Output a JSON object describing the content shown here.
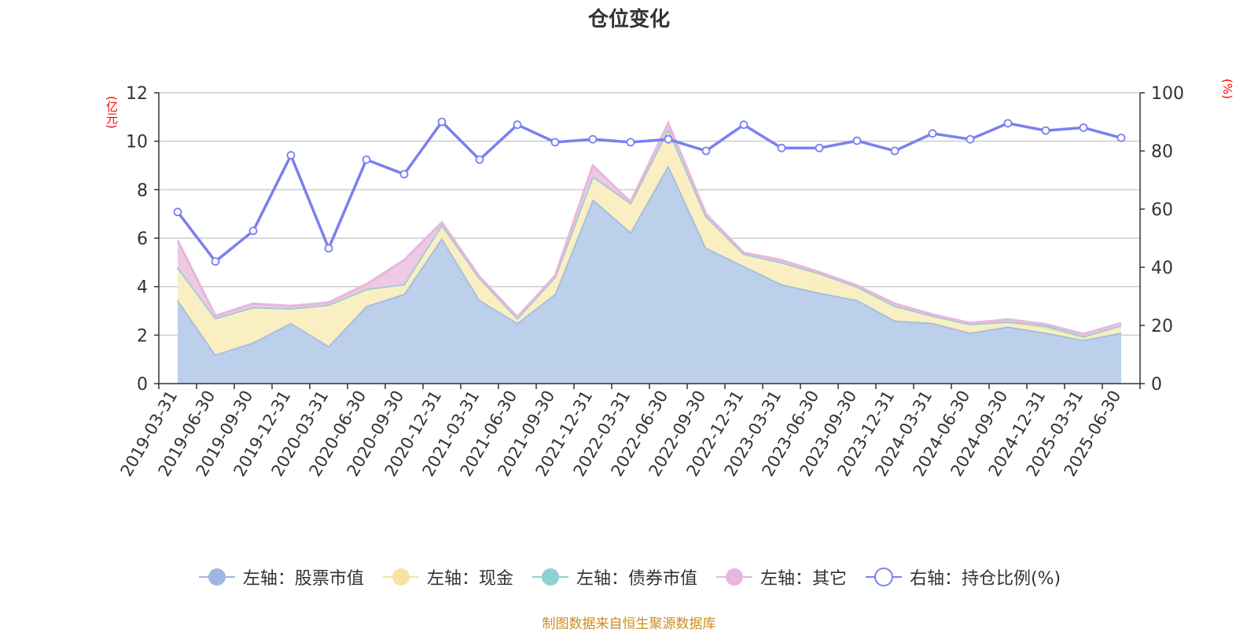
{
  "chart_data": {
    "type": "area",
    "title": "仓位变化",
    "left_unit": "(亿元)",
    "right_unit": "(%)",
    "categories": [
      "2019-03-31",
      "2019-06-30",
      "2019-09-30",
      "2019-12-31",
      "2020-03-31",
      "2020-06-30",
      "2020-09-30",
      "2020-12-31",
      "2021-03-31",
      "2021-06-30",
      "2021-09-30",
      "2021-12-31",
      "2022-03-31",
      "2022-06-30",
      "2022-09-30",
      "2022-12-31",
      "2023-03-31",
      "2023-06-30",
      "2023-09-30",
      "2023-12-31",
      "2024-03-31",
      "2024-06-30",
      "2024-09-30",
      "2024-12-31",
      "2025-03-31",
      "2025-06-30"
    ],
    "left_axis": {
      "min": 0,
      "max": 12,
      "ticks": [
        0,
        2,
        4,
        6,
        8,
        10,
        12
      ]
    },
    "right_axis": {
      "min": 0,
      "max": 100,
      "ticks": [
        0,
        20,
        40,
        60,
        80,
        100
      ]
    },
    "stacked_series": [
      {
        "name": "左轴：股票市值",
        "color": "#9db8e0",
        "fill": "#b8cdea",
        "values": [
          3.45,
          1.2,
          1.7,
          2.5,
          1.55,
          3.2,
          3.7,
          6.0,
          3.45,
          2.5,
          3.7,
          7.6,
          6.25,
          9.0,
          5.6,
          4.85,
          4.1,
          3.75,
          3.45,
          2.6,
          2.5,
          2.1,
          2.35,
          2.1,
          1.8,
          2.1
        ]
      },
      {
        "name": "左轴：现金",
        "color": "#f7e3a0",
        "fill": "#faeebf",
        "values": [
          1.35,
          1.5,
          1.45,
          0.6,
          1.7,
          0.7,
          0.4,
          0.55,
          0.9,
          0.2,
          0.7,
          0.95,
          1.2,
          1.5,
          1.3,
          0.5,
          0.9,
          0.8,
          0.55,
          0.6,
          0.3,
          0.35,
          0.2,
          0.2,
          0.1,
          0.3
        ]
      },
      {
        "name": "左轴：债券市值",
        "color": "#8fd0d2",
        "fill": "#b3e0e2",
        "values": [
          0,
          0,
          0,
          0,
          0,
          0,
          0,
          0,
          0,
          0,
          0,
          0,
          0,
          0,
          0,
          0,
          0,
          0,
          0,
          0,
          0,
          0,
          0,
          0.1,
          0.05,
          0
        ]
      },
      {
        "name": "左轴：其它",
        "color": "#e9b6dd",
        "fill": "#ecc6e3",
        "values": [
          1.1,
          0.1,
          0.15,
          0.1,
          0.1,
          0.2,
          1.0,
          0.1,
          0.05,
          0.05,
          0.05,
          0.45,
          0.05,
          0.25,
          0.1,
          0.05,
          0.1,
          0.05,
          0.05,
          0.1,
          0.05,
          0.05,
          0.1,
          0.05,
          0.1,
          0.1
        ]
      }
    ],
    "line_series": {
      "name": "右轴：持仓比例(%)",
      "color": "#7b7ff0",
      "values": [
        59,
        42,
        52.5,
        78.5,
        46.5,
        77,
        72,
        90,
        77,
        89,
        83,
        84,
        83,
        84,
        80,
        89,
        81,
        81,
        83.5,
        80,
        86,
        84,
        89.5,
        87,
        88,
        84.5
      ]
    },
    "grid": true
  },
  "legend": {
    "items": [
      {
        "label": "左轴：股票市值",
        "color": "#9db8e0",
        "marker": "filled"
      },
      {
        "label": "左轴：现金",
        "color": "#f7e3a0",
        "marker": "filled"
      },
      {
        "label": "左轴：债券市值",
        "color": "#8fd0d2",
        "marker": "filled"
      },
      {
        "label": "左轴：其它",
        "color": "#e9b6dd",
        "marker": "filled"
      },
      {
        "label": "右轴：持仓比例(%)",
        "color": "#7b7ff0",
        "marker": "hollow"
      }
    ]
  },
  "source_text": "制图数据来自恒生聚源数据库"
}
